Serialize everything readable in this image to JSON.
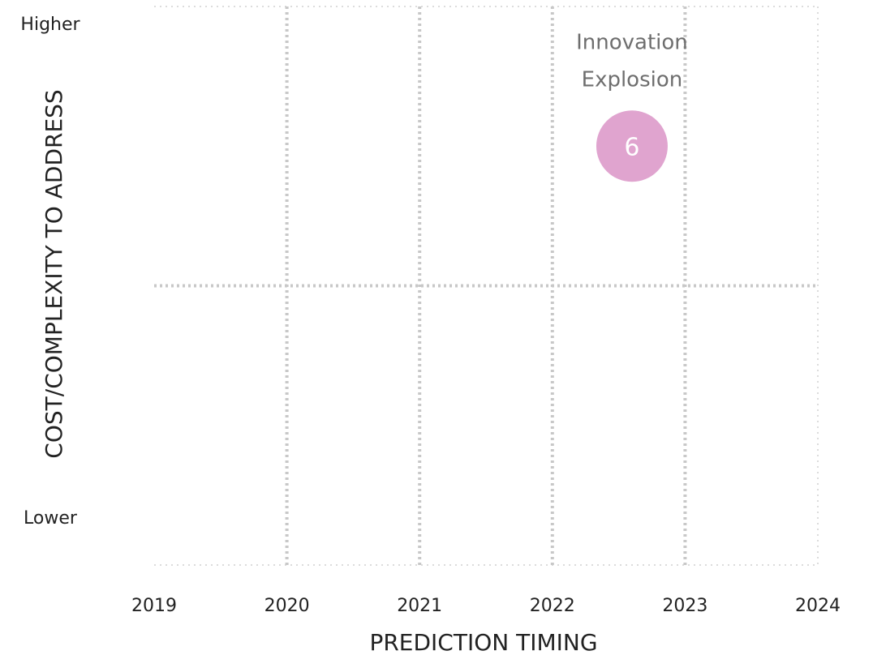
{
  "chart_data": {
    "type": "scatter",
    "xlabel": "PREDICTION TIMING",
    "ylabel": "COST/COMPLEXITY TO ADDRESS",
    "x_ticks": [
      "2019",
      "2020",
      "2021",
      "2022",
      "2023",
      "2024"
    ],
    "xlim": [
      2019,
      2024
    ],
    "ylim": [
      0,
      1
    ],
    "y_levels": {
      "high": "Higher",
      "low": "Lower"
    },
    "grid": true,
    "points": [
      {
        "label": "Innovation Explosion",
        "number": "6",
        "x": 2022.6,
        "y": 0.75,
        "color": "#e0a4cf"
      }
    ]
  }
}
